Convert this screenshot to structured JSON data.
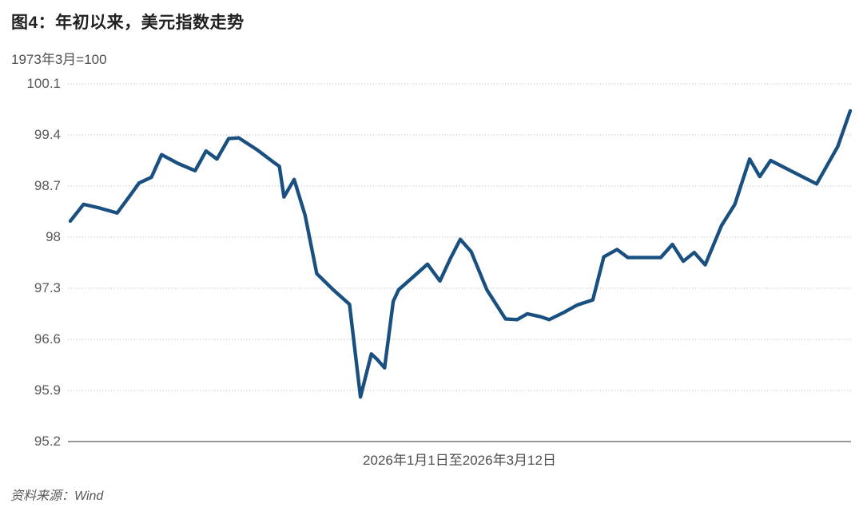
{
  "page": {
    "title": "图4：年初以来，美元指数走势",
    "source": "资料来源：Wind"
  },
  "chart_data": {
    "type": "line",
    "title": "图4：年初以来，美元指数走势",
    "unit_label": "1973年3月=100",
    "xlabel": "2026年1月1日至2026年3月12日",
    "ylim": [
      95.2,
      100.1
    ],
    "yticks": [
      100.1,
      99.4,
      98.7,
      98,
      97.3,
      96.6,
      95.9,
      95.2
    ],
    "grid": "horizontal-dotted",
    "legend": "none",
    "colors": {
      "line": "#1A5080",
      "gridline": "#c2c2c2",
      "axis": "#737373",
      "tick_text": "#595959"
    },
    "points": [
      [
        0.0,
        98.22
      ],
      [
        0.017,
        98.45
      ],
      [
        0.037,
        98.4
      ],
      [
        0.06,
        98.33
      ],
      [
        0.078,
        98.59
      ],
      [
        0.088,
        98.74
      ],
      [
        0.104,
        98.82
      ],
      [
        0.117,
        99.13
      ],
      [
        0.138,
        99.01
      ],
      [
        0.16,
        98.91
      ],
      [
        0.174,
        99.18
      ],
      [
        0.188,
        99.07
      ],
      [
        0.203,
        99.35
      ],
      [
        0.216,
        99.36
      ],
      [
        0.239,
        99.2
      ],
      [
        0.26,
        99.03
      ],
      [
        0.268,
        98.97
      ],
      [
        0.274,
        98.55
      ],
      [
        0.287,
        98.79
      ],
      [
        0.301,
        98.3
      ],
      [
        0.316,
        97.5
      ],
      [
        0.337,
        97.28
      ],
      [
        0.358,
        97.08
      ],
      [
        0.372,
        95.81
      ],
      [
        0.386,
        96.4
      ],
      [
        0.393,
        96.33
      ],
      [
        0.403,
        96.21
      ],
      [
        0.414,
        97.12
      ],
      [
        0.421,
        97.28
      ],
      [
        0.439,
        97.45
      ],
      [
        0.458,
        97.63
      ],
      [
        0.474,
        97.4
      ],
      [
        0.487,
        97.7
      ],
      [
        0.5,
        97.97
      ],
      [
        0.514,
        97.8
      ],
      [
        0.534,
        97.28
      ],
      [
        0.558,
        96.88
      ],
      [
        0.573,
        96.87
      ],
      [
        0.586,
        96.95
      ],
      [
        0.603,
        96.91
      ],
      [
        0.614,
        96.87
      ],
      [
        0.633,
        96.97
      ],
      [
        0.65,
        97.07
      ],
      [
        0.67,
        97.14
      ],
      [
        0.684,
        97.73
      ],
      [
        0.701,
        97.83
      ],
      [
        0.715,
        97.72
      ],
      [
        0.735,
        97.72
      ],
      [
        0.757,
        97.72
      ],
      [
        0.772,
        97.9
      ],
      [
        0.786,
        97.67
      ],
      [
        0.8,
        97.79
      ],
      [
        0.814,
        97.62
      ],
      [
        0.835,
        98.16
      ],
      [
        0.852,
        98.45
      ],
      [
        0.871,
        99.07
      ],
      [
        0.884,
        98.83
      ],
      [
        0.898,
        99.05
      ],
      [
        0.927,
        98.89
      ],
      [
        0.957,
        98.73
      ],
      [
        0.984,
        99.24
      ],
      [
        1.0,
        99.73
      ]
    ]
  }
}
